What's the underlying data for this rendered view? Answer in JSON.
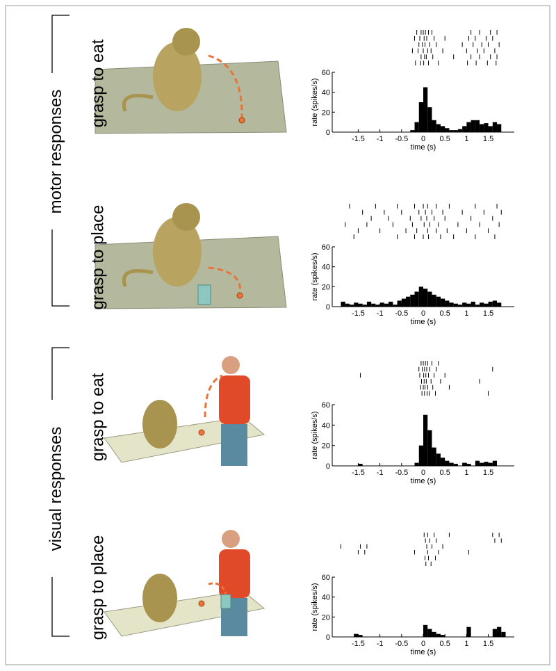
{
  "group_labels": [
    "motor responses",
    "visual responses"
  ],
  "chart_data": [
    {
      "type": "histogram",
      "title": "grasp to eat",
      "xlabel": "time (s)",
      "ylabel": "rate (spikes/s)",
      "color": "#000000",
      "bins": [
        -2,
        -1.9,
        -1.8,
        -1.7,
        -1.6,
        -1.5,
        -1.4,
        -1.3,
        -1.2,
        -1.1,
        -1,
        -0.9,
        -0.8,
        -0.7,
        -0.6,
        -0.5,
        -0.4,
        -0.3,
        -0.2,
        -0.1,
        0,
        0.1,
        0.2,
        0.3,
        0.4,
        0.5,
        0.6,
        0.7,
        0.8,
        0.9,
        1,
        1.1,
        1.2,
        1.3,
        1.4,
        1.5,
        1.6,
        1.7,
        1.8,
        1.9,
        2
      ],
      "values": [
        0,
        0,
        0,
        0,
        0,
        0,
        0,
        0,
        0,
        0,
        0,
        0,
        0,
        0,
        0,
        0,
        0,
        2,
        10,
        30,
        45,
        25,
        12,
        8,
        6,
        4,
        2,
        2,
        3,
        6,
        10,
        12,
        12,
        8,
        9,
        6,
        10,
        8,
        0,
        0
      ],
      "xlim": [
        -2.1,
        2.1
      ],
      "xticks": [
        -1.5,
        -1,
        -0.5,
        0,
        0.5,
        1,
        1.5
      ],
      "ylim": [
        0,
        60
      ],
      "yticks": [
        0,
        20,
        40,
        60
      ],
      "raster": [
        [
          -0.15,
          -0.05,
          0,
          0.05,
          0.12,
          0.2,
          1.1,
          1.3,
          1.55,
          1.7
        ],
        [
          -0.2,
          -0.08,
          0.02,
          0.08,
          0.25,
          0.5,
          1.05,
          1.2,
          1.45,
          1.6
        ],
        [
          -0.1,
          -0.02,
          0.04,
          0.15,
          0.3,
          0.9,
          1.15,
          1.35,
          1.5,
          1.75
        ],
        [
          -0.25,
          -0.12,
          0,
          0.1,
          0.18,
          0.45,
          1,
          1.25,
          1.4,
          1.65
        ],
        [
          -0.05,
          0.03,
          0.07,
          0.22,
          0.7,
          1.1,
          1.3,
          1.55,
          1.7
        ],
        [
          -0.18,
          -0.06,
          0.01,
          0.12,
          0.35,
          1.02,
          1.22,
          1.48,
          1.68
        ]
      ]
    },
    {
      "type": "histogram",
      "title": "grasp to place",
      "xlabel": "time (s)",
      "ylabel": "rate (spikes/s)",
      "color": "#000000",
      "bins": [
        -2,
        -1.9,
        -1.8,
        -1.7,
        -1.6,
        -1.5,
        -1.4,
        -1.3,
        -1.2,
        -1.1,
        -1,
        -0.9,
        -0.8,
        -0.7,
        -0.6,
        -0.5,
        -0.4,
        -0.3,
        -0.2,
        -0.1,
        0,
        0.1,
        0.2,
        0.3,
        0.4,
        0.5,
        0.6,
        0.7,
        0.8,
        0.9,
        1,
        1.1,
        1.2,
        1.3,
        1.4,
        1.5,
        1.6,
        1.7,
        1.8,
        1.9,
        2
      ],
      "values": [
        0,
        5,
        3,
        2,
        4,
        3,
        2,
        5,
        3,
        2,
        4,
        3,
        5,
        2,
        6,
        8,
        10,
        12,
        15,
        20,
        18,
        15,
        12,
        10,
        8,
        6,
        4,
        3,
        2,
        4,
        3,
        5,
        2,
        4,
        3,
        5,
        6,
        4,
        0,
        0
      ],
      "xlim": [
        -2.1,
        2.1
      ],
      "xticks": [
        -1.5,
        -1,
        -0.5,
        0,
        0.5,
        1,
        1.5
      ],
      "ylim": [
        0,
        60
      ],
      "yticks": [
        0,
        20,
        40,
        60
      ],
      "raster": [
        [
          -1.7,
          -1.1,
          -0.6,
          -0.2,
          0,
          0.1,
          0.3,
          0.6,
          1.2,
          1.7
        ],
        [
          -1.4,
          -0.9,
          -0.5,
          -0.1,
          0.05,
          0.2,
          0.45,
          0.9,
          1.4,
          1.8
        ],
        [
          -1.2,
          -0.8,
          -0.3,
          -0.05,
          0.08,
          0.25,
          0.5,
          1.1,
          1.6
        ],
        [
          -1.8,
          -1.3,
          -0.7,
          -0.25,
          0.02,
          0.15,
          0.35,
          0.8,
          1.3,
          1.75
        ],
        [
          -1.5,
          -1,
          -0.4,
          -0.15,
          0.1,
          0.3,
          0.55,
          1,
          1.5
        ],
        [
          -1.6,
          -0.6,
          -0.2,
          0,
          0.12,
          0.4,
          0.7,
          1.2,
          1.65
        ]
      ]
    },
    {
      "type": "histogram",
      "title": "grasp to eat",
      "xlabel": "time (s)",
      "ylabel": "rate (spikes/s)",
      "color": "#000000",
      "bins": [
        -2,
        -1.9,
        -1.8,
        -1.7,
        -1.6,
        -1.5,
        -1.4,
        -1.3,
        -1.2,
        -1.1,
        -1,
        -0.9,
        -0.8,
        -0.7,
        -0.6,
        -0.5,
        -0.4,
        -0.3,
        -0.2,
        -0.1,
        0,
        0.1,
        0.2,
        0.3,
        0.4,
        0.5,
        0.6,
        0.7,
        0.8,
        0.9,
        1,
        1.1,
        1.2,
        1.3,
        1.4,
        1.5,
        1.6,
        1.7,
        1.8,
        1.9,
        2
      ],
      "values": [
        0,
        0,
        0,
        0,
        0,
        2,
        0,
        0,
        0,
        0,
        0,
        0,
        0,
        0,
        0,
        0,
        0,
        0,
        3,
        20,
        50,
        35,
        18,
        12,
        8,
        5,
        3,
        2,
        0,
        3,
        2,
        0,
        5,
        3,
        4,
        3,
        5,
        0,
        0,
        0
      ],
      "xlim": [
        -2.1,
        2.1
      ],
      "xticks": [
        -1.5,
        -1,
        -0.5,
        0,
        0.5,
        1,
        1.5
      ],
      "ylim": [
        0,
        60
      ],
      "yticks": [
        0,
        20,
        40,
        60
      ],
      "raster": [
        [
          -0.05,
          0,
          0.05,
          0.1,
          0.2,
          0.35
        ],
        [
          -0.1,
          -0.02,
          0.03,
          0.08,
          0.15,
          0.3,
          1.6
        ],
        [
          -1.45,
          -0.08,
          0.01,
          0.06,
          0.12,
          0.25,
          0.5
        ],
        [
          -0.04,
          0.02,
          0.07,
          0.18,
          0.4,
          1.3
        ],
        [
          -0.06,
          0,
          0.04,
          0.1,
          0.22,
          0.6
        ],
        [
          -0.03,
          0.03,
          0.09,
          0.14,
          0.28,
          1.5
        ]
      ]
    },
    {
      "type": "histogram",
      "title": "grasp to place",
      "xlabel": "time (s)",
      "ylabel": "rate (spikes/s)",
      "color": "#000000",
      "bins": [
        -2,
        -1.9,
        -1.8,
        -1.7,
        -1.6,
        -1.5,
        -1.4,
        -1.3,
        -1.2,
        -1.1,
        -1,
        -0.9,
        -0.8,
        -0.7,
        -0.6,
        -0.5,
        -0.4,
        -0.3,
        -0.2,
        -0.1,
        0,
        0.1,
        0.2,
        0.3,
        0.4,
        0.5,
        0.6,
        0.7,
        0.8,
        0.9,
        1,
        1.1,
        1.2,
        1.3,
        1.4,
        1.5,
        1.6,
        1.7,
        1.8,
        1.9,
        2
      ],
      "values": [
        0,
        0,
        0,
        0,
        3,
        2,
        0,
        0,
        0,
        0,
        0,
        0,
        0,
        0,
        0,
        0,
        0,
        0,
        0,
        0,
        12,
        8,
        5,
        3,
        2,
        0,
        0,
        0,
        0,
        0,
        10,
        0,
        0,
        0,
        0,
        0,
        8,
        10,
        5,
        0
      ],
      "xlim": [
        -2.1,
        2.1
      ],
      "xticks": [
        -1.5,
        -1,
        -0.5,
        0,
        0.5,
        1,
        1.5
      ],
      "ylim": [
        0,
        60
      ],
      "yticks": [
        0,
        20,
        40,
        60
      ],
      "raster": [
        [
          0.02,
          0.1,
          0.25,
          0.6,
          1.6,
          1.75
        ],
        [
          0.05,
          0.15,
          0.3,
          1.65,
          1.8
        ],
        [
          -1.9,
          -1.45,
          -1.3,
          0.08,
          0.2,
          0.45
        ],
        [
          -1.5,
          -1.35,
          -0.2,
          0.1,
          0.35,
          1.05
        ],
        [
          0.04,
          0.12,
          0.28
        ],
        [
          0.06,
          0.18
        ]
      ]
    }
  ]
}
